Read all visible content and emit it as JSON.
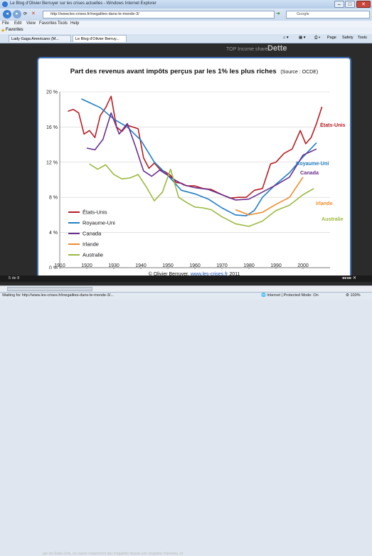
{
  "window": {
    "title": "Le Blog d'Olivier Berruyer sur les crises actuelles - Windows Internet Explorer"
  },
  "address": {
    "url": "http://www.les-crises.fr/inegalites-dans-le-monde-3/",
    "search_engine": "Google"
  },
  "menu": [
    "File",
    "Edit",
    "View",
    "Favorites",
    "Tools",
    "Help"
  ],
  "favorites": {
    "label": "Favorites"
  },
  "tabs": [
    {
      "label": "Lady Gaga Americano (M..."
    },
    {
      "label": "Le Blog d'Olivier Berruy..."
    }
  ],
  "commandbar": {
    "page": "Page",
    "safety": "Safety",
    "tools": "Tools"
  },
  "background": {
    "left_text": "TOP Income share",
    "right_text": "Dette"
  },
  "slide": {
    "counter": "5 de 8",
    "credit_prefix": "© Olivier Berruyer, ",
    "credit_link": "www.les-crises.fr",
    "credit_suffix": "  2011",
    "nav_controls": "◂◂ ▸▸ ✕",
    "behind_text": "par les Etats-Unis, en raison notamment des inégalités depuis une vingtaine d'années, et"
  },
  "chart_data": {
    "type": "line",
    "title": "Part des revenus avant impôts perçus par les 1% les plus riches",
    "subtitle": "(Source : OCDE)",
    "x_ticks": [
      1910,
      1920,
      1930,
      1940,
      1950,
      1960,
      1970,
      1980,
      1990,
      2000
    ],
    "y_ticks": [
      "0 %",
      "4 %",
      "8 %",
      "12 %",
      "16 %",
      "20 %"
    ],
    "xlim": [
      1910,
      2010
    ],
    "ylim": [
      0,
      20
    ],
    "grid": "horizontal",
    "legend": "bottom-left",
    "series": [
      {
        "name": "États-Unis",
        "color": "#b81d24",
        "x": [
          1913,
          1915,
          1917,
          1919,
          1921,
          1923,
          1925,
          1927,
          1929,
          1931,
          1933,
          1935,
          1937,
          1939,
          1941,
          1943,
          1945,
          1947,
          1949,
          1951,
          1953,
          1955,
          1957,
          1960,
          1963,
          1966,
          1970,
          1973,
          1976,
          1979,
          1982,
          1985,
          1988,
          1990,
          1993,
          1996,
          1999,
          2001,
          2003,
          2005,
          2007
        ],
        "y": [
          17.8,
          18.0,
          17.6,
          15.2,
          15.6,
          14.8,
          17.3,
          18.2,
          19.5,
          16.0,
          15.5,
          16.2,
          16.0,
          15.8,
          12.5,
          11.3,
          11.9,
          11.2,
          10.9,
          10.5,
          9.7,
          9.6,
          9.3,
          9.3,
          9.0,
          8.9,
          8.3,
          7.9,
          8.0,
          8.0,
          8.8,
          9.0,
          11.8,
          12.0,
          13.0,
          13.5,
          15.6,
          14.1,
          14.8,
          16.4,
          18.3
        ]
      },
      {
        "name": "Royaume-Uni",
        "color": "#1f7fc4",
        "x": [
          1918,
          1925,
          1930,
          1935,
          1940,
          1945,
          1950,
          1955,
          1960,
          1965,
          1970,
          1975,
          1979,
          1982,
          1985,
          1990,
          1995,
          2000,
          2005
        ],
        "y": [
          19.2,
          18.2,
          16.9,
          16.0,
          14.5,
          12.0,
          10.5,
          8.8,
          8.4,
          7.8,
          6.8,
          6.0,
          5.9,
          6.5,
          8.0,
          9.5,
          10.8,
          12.6,
          14.2
        ]
      },
      {
        "name": "Canada",
        "color": "#6b2f8e",
        "x": [
          1920,
          1923,
          1926,
          1929,
          1932,
          1935,
          1938,
          1941,
          1944,
          1947,
          1950,
          1953,
          1956,
          1960,
          1965,
          1970,
          1975,
          1980,
          1985,
          1990,
          1995,
          2000,
          2005
        ],
        "y": [
          13.6,
          13.4,
          14.6,
          17.6,
          15.2,
          16.4,
          13.8,
          11.0,
          10.4,
          11.1,
          10.5,
          9.9,
          9.4,
          9.1,
          8.9,
          8.3,
          7.7,
          7.8,
          8.6,
          9.4,
          10.3,
          12.8,
          13.5
        ]
      },
      {
        "name": "Irlande",
        "color": "#ef8c2a",
        "x": [
          1975,
          1980,
          1985,
          1990,
          1995,
          2000
        ],
        "y": [
          6.6,
          6.0,
          6.3,
          7.2,
          8.0,
          10.3
        ]
      },
      {
        "name": "Australie",
        "color": "#9bb93f",
        "x": [
          1921,
          1924,
          1927,
          1930,
          1933,
          1936,
          1939,
          1942,
          1945,
          1948,
          1951,
          1954,
          1957,
          1960,
          1963,
          1966,
          1970,
          1975,
          1980,
          1985,
          1990,
          1995,
          2000,
          2004
        ],
        "y": [
          11.8,
          11.2,
          11.7,
          10.6,
          10.1,
          10.2,
          10.6,
          9.2,
          7.6,
          8.6,
          11.2,
          8.0,
          7.4,
          6.9,
          6.8,
          6.6,
          5.8,
          5.0,
          4.7,
          5.3,
          6.5,
          7.1,
          8.3,
          9.0
        ]
      }
    ]
  }
}
